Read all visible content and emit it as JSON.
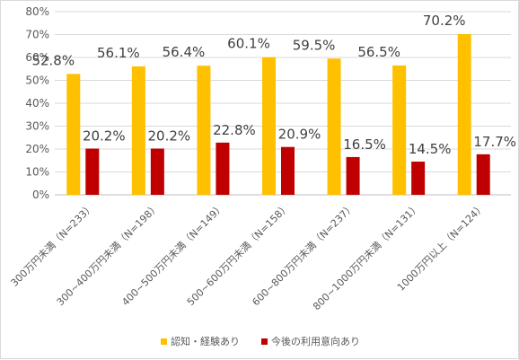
{
  "chart_data": {
    "type": "bar",
    "categories": [
      "300万円未満（N=233）",
      "300~400万円未満（N=198）",
      "400~500万円未満（N=149）",
      "500~600万円未満（N=158）",
      "600~800万円未満（N=237）",
      "800~1000万円未満（N=131）",
      "1000万円以上（N=124）"
    ],
    "series": [
      {
        "name": "認知・経験あり",
        "values": [
          52.8,
          56.1,
          56.4,
          60.1,
          59.5,
          56.5,
          70.2
        ],
        "labels": [
          "52.8%",
          "56.1%",
          "56.4%",
          "60.1%",
          "59.5%",
          "56.5%",
          "70.2%"
        ],
        "color": "#FFC000"
      },
      {
        "name": "今後の利用意向あり",
        "values": [
          20.2,
          20.2,
          22.8,
          20.9,
          16.5,
          14.5,
          17.7
        ],
        "labels": [
          "20.2%",
          "20.2%",
          "22.8%",
          "20.9%",
          "16.5%",
          "14.5%",
          "17.7%"
        ],
        "color": "#C00000"
      }
    ],
    "y_ticks": [
      "0%",
      "10%",
      "20%",
      "30%",
      "40%",
      "50%",
      "60%",
      "70%",
      "80%"
    ],
    "ylim": [
      0,
      80
    ],
    "grid": true,
    "legend_position": "bottom"
  }
}
